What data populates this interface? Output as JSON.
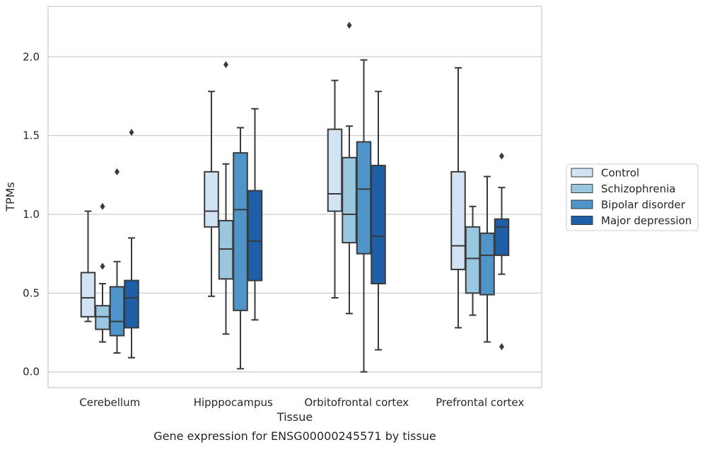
{
  "chart_data": {
    "type": "box",
    "caption": "Gene expression for ENSG00000245571 by tissue",
    "xlabel": "Tissue",
    "ylabel": "TPMs",
    "ylim": [
      -0.1,
      2.32
    ],
    "yticks": [
      0.0,
      0.5,
      1.0,
      1.5,
      2.0
    ],
    "ytick_labels": [
      "0.0",
      "0.5",
      "1.0",
      "1.5",
      "2.0"
    ],
    "grid": "horizontal",
    "legend_position": "right",
    "categories": [
      "Cerebellum",
      "Hipppocampus",
      "Orbitofrontal cortex",
      "Prefrontal cortex"
    ],
    "series": [
      {
        "name": "Control",
        "color": "#d2e3f3",
        "boxes": [
          {
            "whislo": 0.32,
            "q1": 0.35,
            "med": 0.47,
            "q3": 0.63,
            "whishi": 1.02,
            "fliers": []
          },
          {
            "whislo": 0.48,
            "q1": 0.92,
            "med": 1.02,
            "q3": 1.27,
            "whishi": 1.78,
            "fliers": []
          },
          {
            "whislo": 0.47,
            "q1": 1.02,
            "med": 1.13,
            "q3": 1.54,
            "whishi": 1.85,
            "fliers": []
          },
          {
            "whislo": 0.28,
            "q1": 0.65,
            "med": 0.8,
            "q3": 1.27,
            "whishi": 1.93,
            "fliers": []
          }
        ]
      },
      {
        "name": "Schizophrenia",
        "color": "#9ac7e0",
        "boxes": [
          {
            "whislo": 0.19,
            "q1": 0.27,
            "med": 0.35,
            "q3": 0.42,
            "whishi": 0.56,
            "fliers": [
              0.67,
              1.05
            ]
          },
          {
            "whislo": 0.24,
            "q1": 0.59,
            "med": 0.78,
            "q3": 0.96,
            "whishi": 1.32,
            "fliers": [
              1.95
            ]
          },
          {
            "whislo": 0.37,
            "q1": 0.82,
            "med": 1.0,
            "q3": 1.36,
            "whishi": 1.56,
            "fliers": [
              2.2
            ]
          },
          {
            "whislo": 0.36,
            "q1": 0.5,
            "med": 0.72,
            "q3": 0.92,
            "whishi": 1.05,
            "fliers": []
          }
        ]
      },
      {
        "name": "Bipolar disorder",
        "color": "#5095c9",
        "boxes": [
          {
            "whislo": 0.12,
            "q1": 0.23,
            "med": 0.32,
            "q3": 0.54,
            "whishi": 0.7,
            "fliers": [
              1.27
            ]
          },
          {
            "whislo": 0.02,
            "q1": 0.39,
            "med": 1.03,
            "q3": 1.39,
            "whishi": 1.55,
            "fliers": []
          },
          {
            "whislo": 0.0,
            "q1": 0.75,
            "med": 1.16,
            "q3": 1.46,
            "whishi": 1.98,
            "fliers": []
          },
          {
            "whislo": 0.19,
            "q1": 0.49,
            "med": 0.74,
            "q3": 0.88,
            "whishi": 1.24,
            "fliers": []
          }
        ]
      },
      {
        "name": "Major depression",
        "color": "#1f5fa8",
        "boxes": [
          {
            "whislo": 0.09,
            "q1": 0.28,
            "med": 0.47,
            "q3": 0.58,
            "whishi": 0.85,
            "fliers": [
              1.52
            ]
          },
          {
            "whislo": 0.33,
            "q1": 0.58,
            "med": 0.83,
            "q3": 1.15,
            "whishi": 1.67,
            "fliers": []
          },
          {
            "whislo": 0.14,
            "q1": 0.56,
            "med": 0.86,
            "q3": 1.31,
            "whishi": 1.78,
            "fliers": []
          },
          {
            "whislo": 0.62,
            "q1": 0.74,
            "med": 0.92,
            "q3": 0.97,
            "whishi": 1.17,
            "fliers": [
              1.37,
              0.16
            ]
          }
        ]
      }
    ]
  }
}
